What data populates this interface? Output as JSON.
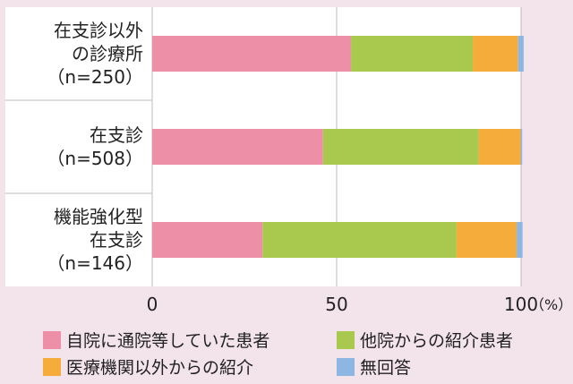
{
  "chart_data": {
    "type": "bar",
    "orientation": "horizontal",
    "stacked": true,
    "categories": [
      [
        "在支診以外",
        "の診療所",
        "（n=250）"
      ],
      [
        "在支診",
        "（n=508）"
      ],
      [
        "機能強化型",
        "在支診",
        "（n=146）"
      ]
    ],
    "series": [
      {
        "name": "自院に通院等していた患者",
        "color": "#ee8fa8",
        "values": [
          53.9,
          46.3,
          29.9
        ]
      },
      {
        "name": "他院からの紹介患者",
        "color": "#a9c84e",
        "values": [
          33.0,
          42.2,
          52.6
        ]
      },
      {
        "name": "医療機関以外からの紹介",
        "color": "#f5ac3a",
        "values": [
          12.3,
          11.4,
          16.3
        ]
      },
      {
        "name": "無回答",
        "color": "#8db7e2",
        "values": [
          1.5,
          0.4,
          1.6
        ]
      }
    ],
    "xlim": [
      0,
      100
    ],
    "xticks": [
      "0",
      "50",
      "100"
    ],
    "xunit": "（%）",
    "grid": true,
    "legend_position": "bottom"
  }
}
